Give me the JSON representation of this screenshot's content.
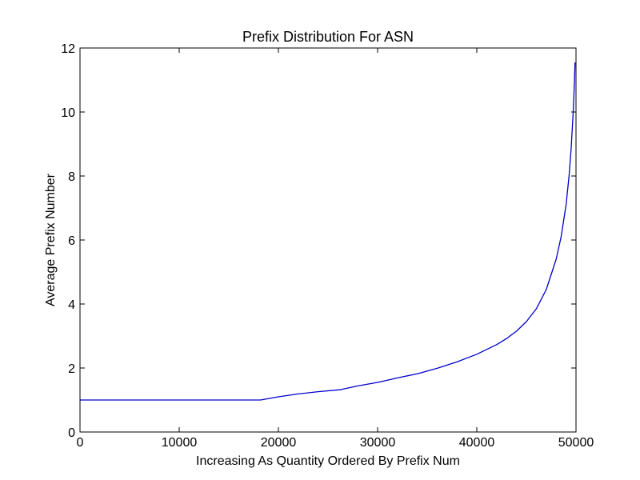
{
  "chart_data": {
    "type": "line",
    "title": "Prefix Distribution For ASN",
    "xlabel": "Increasing As Quantity Ordered By Prefix Num",
    "ylabel": "Average Prefix Number",
    "xlim": [
      0,
      50000
    ],
    "ylim": [
      0,
      12
    ],
    "x_ticks": [
      0,
      10000,
      20000,
      30000,
      40000,
      50000
    ],
    "x_tick_labels": [
      "0",
      "10000",
      "20000",
      "30000",
      "40000",
      "50000"
    ],
    "y_ticks": [
      0,
      2,
      4,
      6,
      8,
      10,
      12
    ],
    "y_tick_labels": [
      "0",
      "2",
      "4",
      "6",
      "8",
      "10",
      "12"
    ],
    "grid": false,
    "series": [
      {
        "color": "#0000cc",
        "x": [
          0,
          5000,
          10000,
          15000,
          18200,
          20000,
          22000,
          24000,
          26200,
          28000,
          30000,
          31000,
          32000,
          34000,
          36000,
          38000,
          40000,
          42000,
          43000,
          44000,
          45000,
          46000,
          47000,
          48000,
          48500,
          49000,
          49300,
          49500,
          49700,
          49800,
          49850,
          49900
        ],
        "y": [
          1.0,
          1.0,
          1.0,
          1.0,
          1.0,
          1.1,
          1.19,
          1.26,
          1.32,
          1.44,
          1.55,
          1.62,
          1.69,
          1.82,
          1.99,
          2.19,
          2.43,
          2.73,
          2.92,
          3.15,
          3.45,
          3.85,
          4.45,
          5.4,
          6.1,
          7.1,
          8.0,
          8.8,
          9.9,
          10.6,
          11.0,
          11.55
        ]
      }
    ]
  }
}
